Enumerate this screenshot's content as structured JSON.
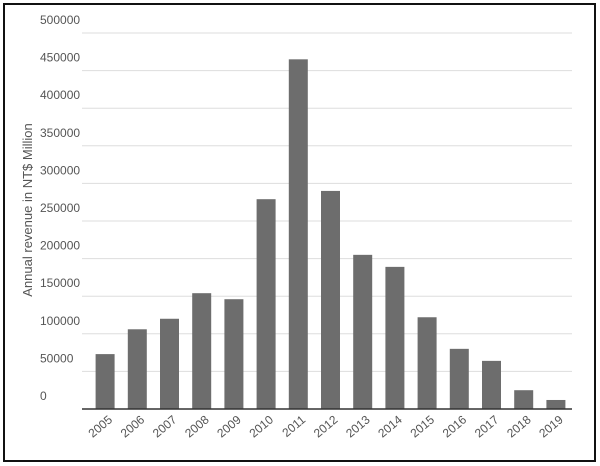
{
  "chart_data": {
    "type": "bar",
    "y_label": "Annual revenue in NT$ Million",
    "categories": [
      "2005",
      "2006",
      "2007",
      "2008",
      "2009",
      "2010",
      "2011",
      "2012",
      "2013",
      "2014",
      "2015",
      "2016",
      "2017",
      "2018",
      "2019"
    ],
    "values": [
      73000,
      106000,
      120000,
      154000,
      146000,
      279000,
      465000,
      290000,
      205000,
      189000,
      122000,
      80000,
      64000,
      25000,
      12000
    ],
    "color": "#6d6d6d",
    "ylim": [
      0,
      500000
    ],
    "yticks": [
      0,
      50000,
      100000,
      150000,
      200000,
      250000,
      300000,
      350000,
      400000,
      450000,
      500000
    ],
    "grid": true
  }
}
